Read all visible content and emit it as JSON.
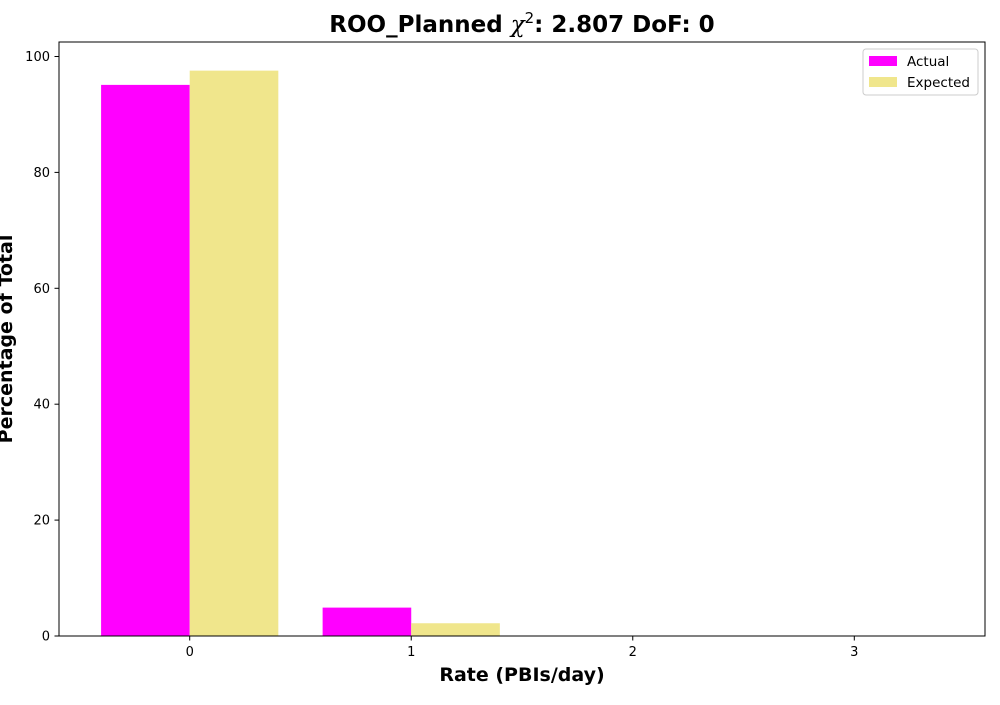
{
  "chart_data": {
    "type": "bar",
    "title_prefix": "ROO_Planned ",
    "title_symbol": "χ",
    "title_superscript": "2",
    "title_suffix": ": 2.807 DoF: 0",
    "xlabel": "Rate (PBIs/day)",
    "ylabel": "Percentage of Total",
    "categories": [
      "0",
      "1",
      "2",
      "3"
    ],
    "x_values": [
      0,
      1,
      2,
      3
    ],
    "yticks": [
      0,
      20,
      40,
      60,
      80,
      100
    ],
    "xlim": [
      -0.59,
      3.59
    ],
    "ylim": [
      0,
      102.5
    ],
    "grid": false,
    "legend_position": "upper right",
    "series": [
      {
        "name": "Actual",
        "color": "#ff00ff",
        "values": [
          95.1,
          4.9,
          0,
          0
        ]
      },
      {
        "name": "Expected",
        "color": "#f0e68c",
        "values": [
          97.56,
          2.2,
          0,
          0
        ]
      }
    ]
  }
}
